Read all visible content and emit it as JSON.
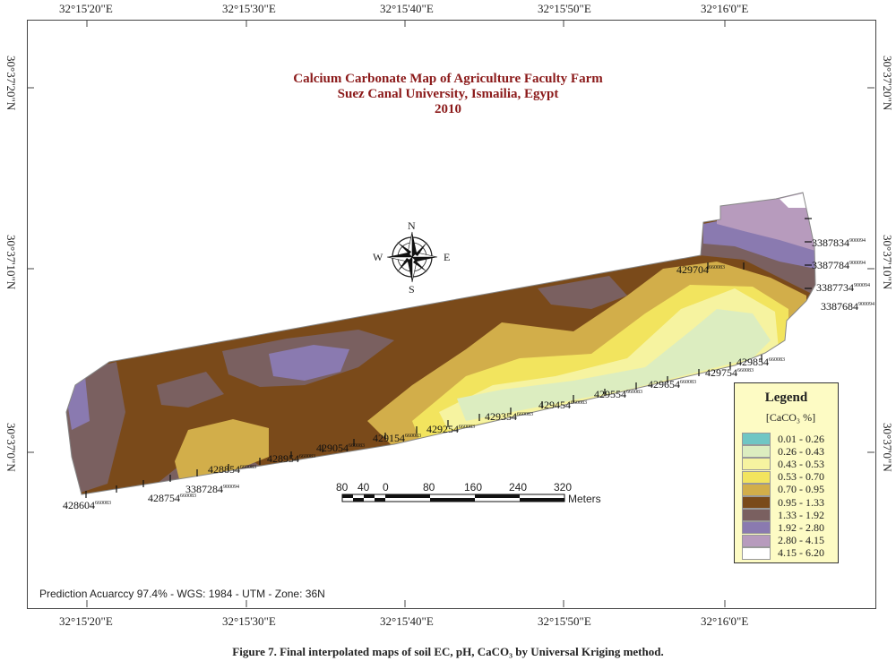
{
  "map": {
    "title_lines": [
      "Calcium Carbonate Map of Agriculture Faculty Farm",
      "Suez Canal University, Ismailia, Egypt",
      "2010"
    ],
    "top_longitudes": [
      "32°15'20\"E",
      "32°15'30\"E",
      "32°15'40\"E",
      "32°15'50\"E",
      "32°16'0\"E"
    ],
    "bottom_longitudes": [
      "32°15'20\"E",
      "32°15'30\"E",
      "32°15'40\"E",
      "32°15'50\"E",
      "32°16'0\"E"
    ],
    "latitudes": [
      "30°37'20\"N",
      "30°37'10\"N",
      "30°37'0\"N"
    ],
    "compass": {
      "n": "N",
      "s": "S",
      "e": "E",
      "w": "W"
    },
    "easting_labels": [
      {
        "main": "428604",
        "sup": "660083"
      },
      {
        "main": "428754",
        "sup": "660083"
      },
      {
        "main": "428854",
        "sup": "660083"
      },
      {
        "main": "428954",
        "sup": "660083"
      },
      {
        "main": "429054",
        "sup": "660083"
      },
      {
        "main": "429154",
        "sup": "660083"
      },
      {
        "main": "429254",
        "sup": "660083"
      },
      {
        "main": "429354",
        "sup": "660083"
      },
      {
        "main": "429454",
        "sup": "660083"
      },
      {
        "main": "429554",
        "sup": "660083"
      },
      {
        "main": "429654",
        "sup": "660083"
      },
      {
        "main": "429754",
        "sup": "660083"
      },
      {
        "main": "429854",
        "sup": "660083"
      },
      {
        "main": "429704",
        "sup": "660083"
      }
    ],
    "northing_labels": [
      {
        "main": "3387284",
        "sup": "900094"
      },
      {
        "main": "3387834",
        "sup": "900094"
      },
      {
        "main": "3387784",
        "sup": "900094"
      },
      {
        "main": "3387734",
        "sup": "900094"
      },
      {
        "main": "3387684",
        "sup": "900094"
      }
    ],
    "scale_bar": {
      "labels": [
        "80",
        "40",
        "0",
        "80",
        "160",
        "240",
        "320"
      ],
      "unit": "Meters"
    },
    "legend": {
      "title": "Legend",
      "unit": "[CaCO₃ %]",
      "classes": [
        {
          "range": "0.01 - 0.26",
          "color": "#6fc6c4"
        },
        {
          "range": "0.26 - 0.43",
          "color": "#dcedc0"
        },
        {
          "range": "0.43 - 0.53",
          "color": "#f6f3a0"
        },
        {
          "range": "0.53 - 0.70",
          "color": "#f2e45e"
        },
        {
          "range": "0.70 - 0.95",
          "color": "#d2ae4a"
        },
        {
          "range": "0.95 - 1.33",
          "color": "#7a4a1a"
        },
        {
          "range": "1.33 - 1.92",
          "color": "#7a6060"
        },
        {
          "range": "1.92 - 2.80",
          "color": "#8a7ab0"
        },
        {
          "range": "2.80 - 4.15",
          "color": "#b79bbd"
        },
        {
          "range": "4.15 - 6.20",
          "color": "#ffffff"
        }
      ]
    },
    "footer_note": "Prediction Acuarccy 97.4% - WGS: 1984 - UTM - Zone: 36N"
  },
  "caption": "Figure 7. Final interpolated maps of soil EC, pH, CaCO₃ by Universal Kriging method."
}
